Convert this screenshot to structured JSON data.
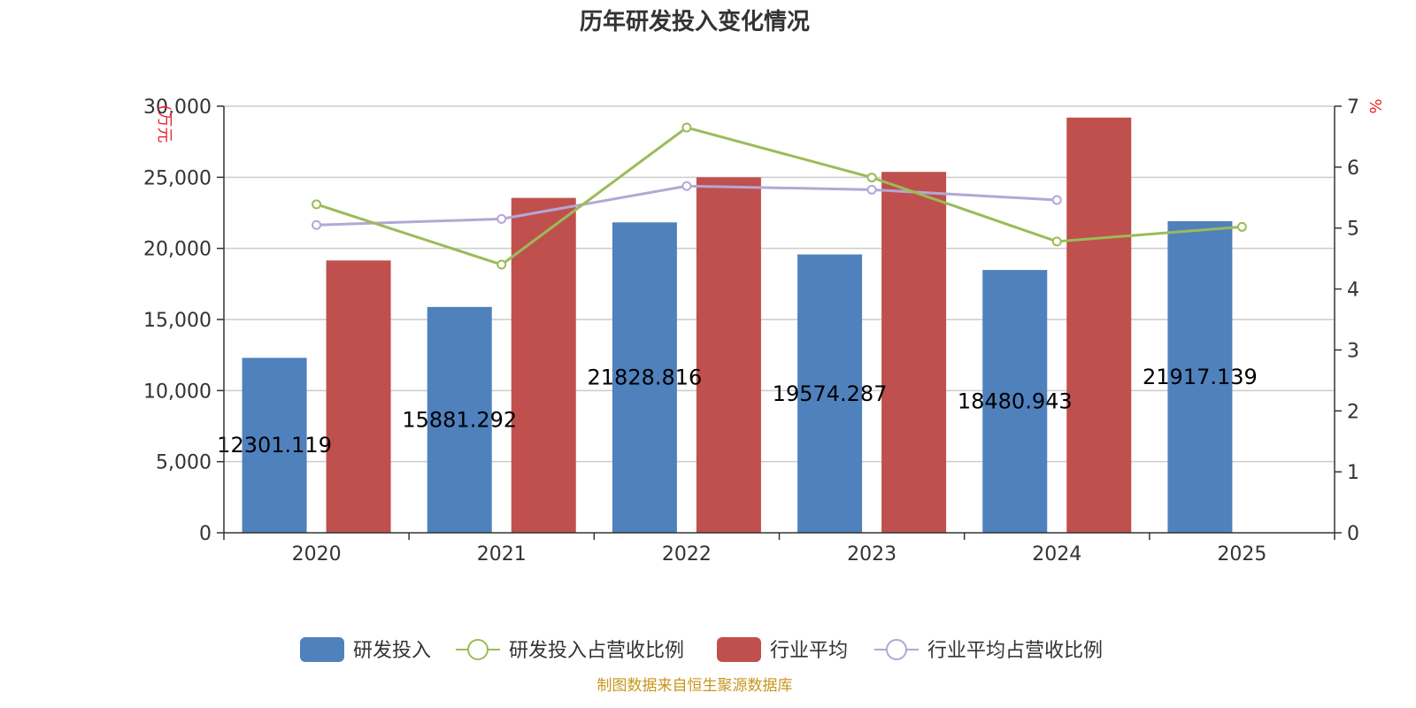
{
  "chart_data": {
    "type": "bar",
    "title": "历年研发投入变化情况",
    "categories": [
      "2020",
      "2021",
      "2022",
      "2023",
      "2024",
      "2025"
    ],
    "left_axis": {
      "unit": "(万元",
      "ticks": [
        "0",
        "5,000",
        "10,000",
        "15,000",
        "20,000",
        "25,000",
        "30,000"
      ],
      "ylim": [
        0,
        30000
      ]
    },
    "right_axis": {
      "unit": "%",
      "ticks": [
        "0",
        "1",
        "2",
        "3",
        "4",
        "5",
        "6",
        "7"
      ],
      "ylim": [
        0,
        7
      ]
    },
    "series": [
      {
        "name": "研发投入",
        "type": "bar",
        "axis": "left",
        "values": [
          12301.119,
          15881.292,
          21828.816,
          19574.287,
          18480.943,
          21917.139
        ],
        "labels": [
          "12301.119",
          "15881.292",
          "21828.816",
          "19574.287",
          "18480.943",
          "21917.139"
        ]
      },
      {
        "name": "研发投入占营收比例",
        "type": "line",
        "axis": "right",
        "values": [
          5.39,
          4.4,
          6.65,
          5.83,
          4.78,
          5.02
        ]
      },
      {
        "name": "行业平均",
        "type": "bar",
        "axis": "left",
        "values": [
          19150,
          23550,
          25000,
          25380,
          29200,
          null
        ]
      },
      {
        "name": "行业平均占营收比例",
        "type": "line",
        "axis": "right",
        "values": [
          5.05,
          5.15,
          5.69,
          5.63,
          5.46,
          null
        ]
      }
    ],
    "grid": true,
    "legend_position": "bottom"
  },
  "colors": {
    "rd_bar": "#4f81bd",
    "rd_line": "#9bbb59",
    "ind_bar": "#c0504d",
    "ind_line": "#b4a7d6"
  },
  "source_note": "制图数据来自恒生聚源数据库"
}
